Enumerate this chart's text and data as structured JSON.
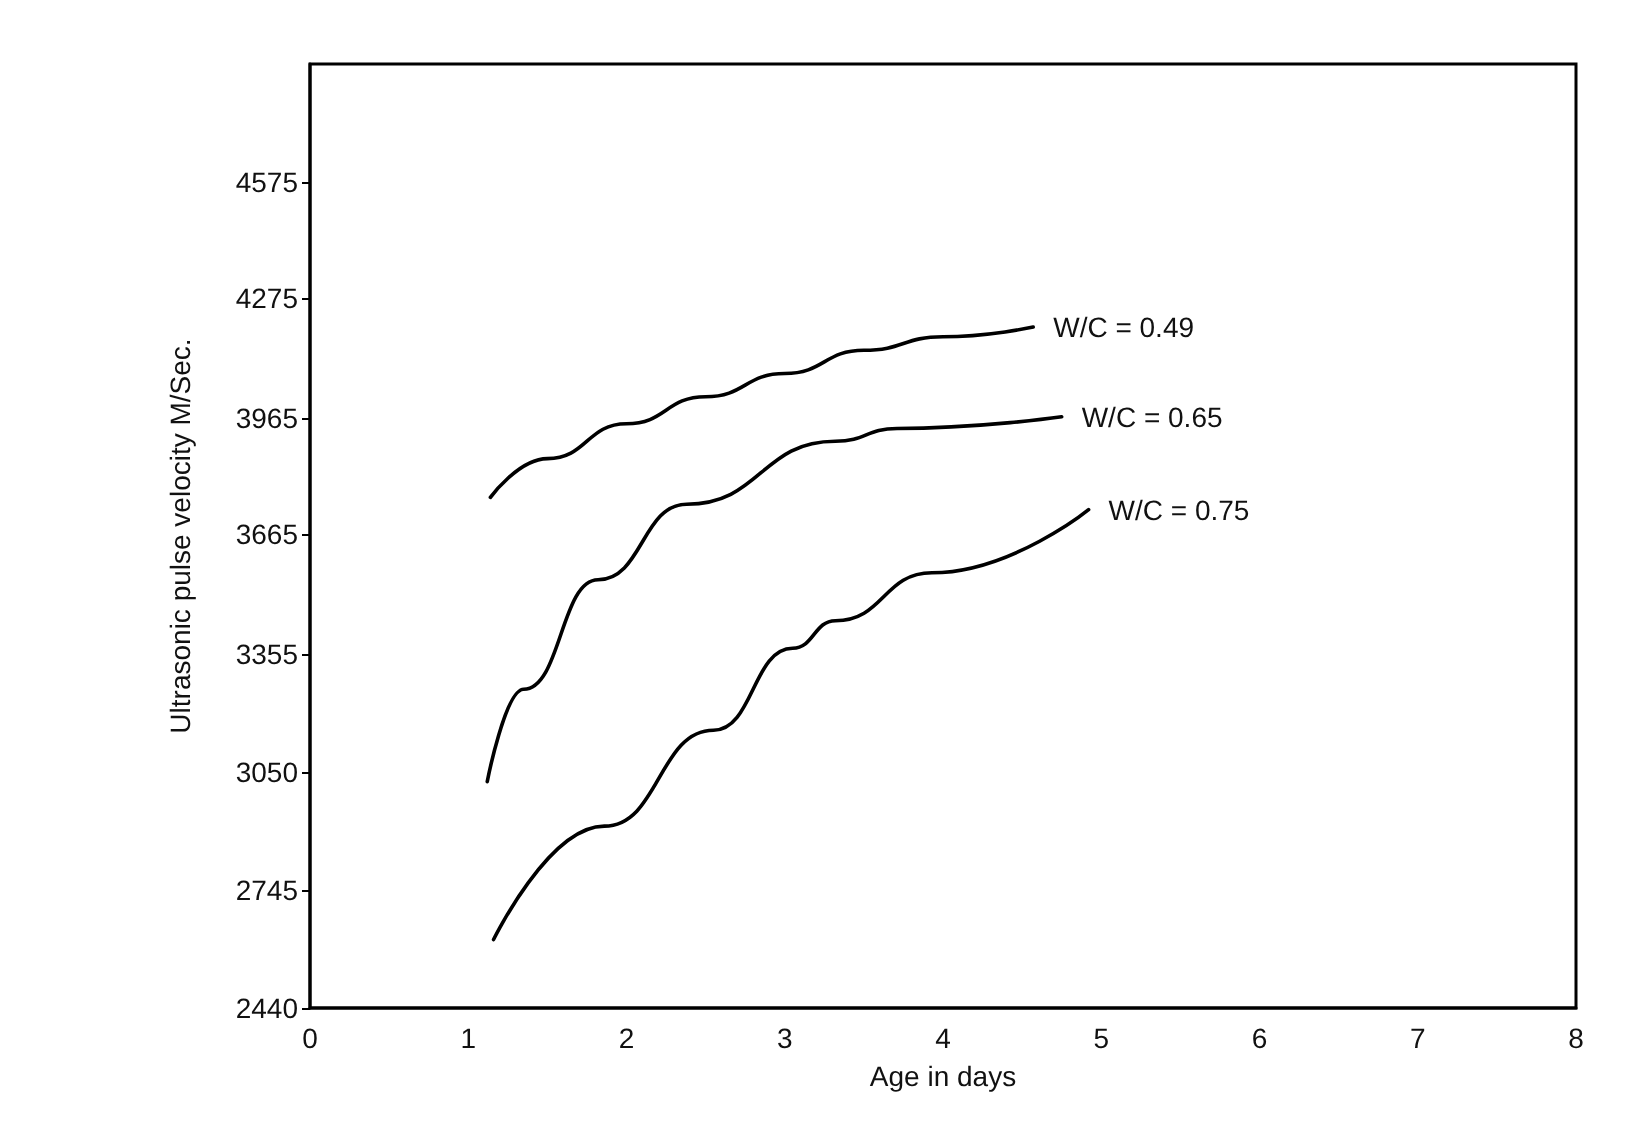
{
  "chart_data": {
    "type": "line",
    "xlabel": "Age in days",
    "ylabel": "Ultrasonic pulse velocity M/Sec.",
    "xlim": [
      0,
      8
    ],
    "xticks": [
      0,
      1,
      2,
      3,
      4,
      5,
      6,
      7,
      8
    ],
    "ylim": [
      2440,
      4880
    ],
    "yticks": [
      2440,
      2745,
      3050,
      3355,
      3665,
      3965,
      4275,
      4575
    ],
    "grid": false,
    "legend": false,
    "marker": "none",
    "line_style": "solid",
    "series": [
      {
        "name": "W/C = 0.49",
        "color": "#000000",
        "x": [
          1.14,
          1.5,
          2,
          2.5,
          3,
          3.5,
          4,
          4.57
        ],
        "values": [
          3760,
          3860,
          3950,
          4020,
          4080,
          4140,
          4175,
          4200
        ]
      },
      {
        "name": "W/C = 0.65",
        "color": "#000000",
        "x": [
          1.12,
          1.35,
          1.82,
          2.38,
          3.32,
          3.71,
          4.75
        ],
        "values": [
          3025,
          3264,
          3547,
          3742,
          3905,
          3938,
          3968
        ]
      },
      {
        "name": "W/C = 0.75",
        "color": "#000000",
        "x": [
          1.16,
          1.86,
          2.55,
          3.05,
          3.32,
          3.93,
          4.92
        ],
        "values": [
          2617,
          2910,
          3158,
          3370,
          3441,
          3565,
          3728
        ]
      }
    ]
  }
}
